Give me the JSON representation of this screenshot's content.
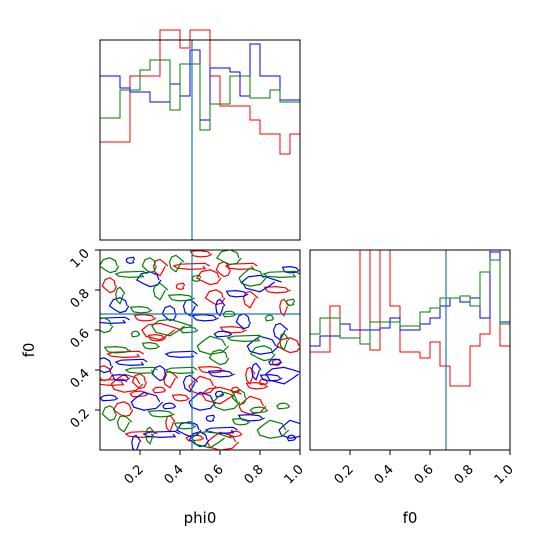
{
  "figure": {
    "type": "corner-plot",
    "axis_labels": {
      "x_left": "phi0",
      "x_right": "f0",
      "y_left": "f0"
    },
    "colors": {
      "red": "#ff0000",
      "blue": "#0000ff",
      "green": "#008000",
      "truth": "#1f77b4"
    }
  },
  "chart_data": [
    {
      "panel": "phi0-marginal",
      "type": "area",
      "xlim": [
        0,
        1
      ],
      "truth": 0.46,
      "bin_edges": [
        0.0,
        0.05,
        0.1,
        0.15,
        0.2,
        0.25,
        0.3,
        0.35,
        0.4,
        0.45,
        0.5,
        0.55,
        0.6,
        0.65,
        0.7,
        0.75,
        0.8,
        0.85,
        0.9,
        0.95,
        1.0
      ],
      "series": [
        {
          "color": "#ff0000",
          "values": [
            0.49,
            0.49,
            0.49,
            0.82,
            0.82,
            0.82,
            1.05,
            1.05,
            0.96,
            1.05,
            1.05,
            0.82,
            0.67,
            0.67,
            0.67,
            0.6,
            0.53,
            0.53,
            0.43,
            0.53
          ]
        },
        {
          "color": "#0000ff",
          "values": [
            0.82,
            0.82,
            0.76,
            0.74,
            0.74,
            0.69,
            0.69,
            0.78,
            0.72,
            0.95,
            0.6,
            0.86,
            0.86,
            0.84,
            0.72,
            0.98,
            0.82,
            0.82,
            0.7,
            0.7
          ]
        },
        {
          "color": "#008000",
          "values": [
            0.61,
            0.61,
            0.75,
            0.75,
            0.85,
            0.9,
            0.9,
            0.65,
            0.88,
            0.88,
            0.55,
            0.68,
            0.68,
            0.82,
            0.82,
            0.71,
            0.71,
            0.75,
            0.69,
            0.69
          ]
        }
      ]
    },
    {
      "panel": "phi0-f0-contour",
      "type": "scatter",
      "xlim": [
        0,
        1
      ],
      "ylim": [
        0,
        1
      ],
      "truth": [
        0.46,
        0.68
      ],
      "xlabel": "phi0",
      "ylabel": "f0",
      "xticks": [
        "0.2",
        "0.4",
        "0.6",
        "0.8",
        "1.0"
      ],
      "yticks": [
        "0.2",
        "0.4",
        "0.6",
        "0.8",
        "1.0"
      ],
      "series": [
        {
          "color": "#ff0000",
          "points": [
            [
              0.02,
              0.38
            ],
            [
              0.05,
              0.34
            ],
            [
              0.2,
              0.34
            ],
            [
              0.35,
              0.36
            ],
            [
              0.55,
              0.4
            ],
            [
              0.75,
              0.38
            ],
            [
              0.78,
              0.32
            ],
            [
              0.6,
              0.28
            ],
            [
              0.4,
              0.26
            ],
            [
              0.2,
              0.28
            ],
            [
              0.12,
              0.33
            ],
            [
              0.3,
              0.3
            ],
            [
              0.5,
              0.32
            ],
            [
              0.68,
              0.3
            ],
            [
              0.4,
              0.82
            ],
            [
              0.55,
              0.86
            ],
            [
              0.45,
              0.92
            ],
            [
              0.58,
              0.76
            ],
            [
              0.7,
              0.92
            ],
            [
              0.62,
              0.9
            ],
            [
              0.75,
              0.76
            ],
            [
              0.88,
              0.8
            ],
            [
              0.92,
              0.72
            ],
            [
              0.22,
              0.66
            ],
            [
              0.3,
              0.6
            ],
            [
              0.28,
              0.56
            ],
            [
              0.48,
              0.06
            ],
            [
              0.6,
              0.04
            ],
            [
              0.68,
              0.08
            ],
            [
              0.75,
              0.22
            ],
            [
              0.82,
              0.34
            ],
            [
              0.88,
              0.44
            ],
            [
              0.95,
              0.52
            ],
            [
              0.12,
              0.48
            ],
            [
              0.12,
              0.2
            ],
            [
              0.2,
              0.08
            ],
            [
              0.05,
              0.82
            ],
            [
              0.3,
              0.92
            ],
            [
              0.66,
              0.6
            ],
            [
              0.35,
              0.14
            ],
            [
              0.5,
              0.98
            ]
          ]
        },
        {
          "color": "#0000ff",
          "points": [
            [
              0.02,
              0.42
            ],
            [
              0.15,
              0.44
            ],
            [
              0.3,
              0.38
            ],
            [
              0.45,
              0.34
            ],
            [
              0.6,
              0.38
            ],
            [
              0.78,
              0.4
            ],
            [
              0.85,
              0.36
            ],
            [
              0.92,
              0.38
            ],
            [
              0.1,
              0.36
            ],
            [
              0.05,
              0.26
            ],
            [
              0.22,
              0.24
            ],
            [
              0.35,
              0.22
            ],
            [
              0.5,
              0.24
            ],
            [
              0.6,
              0.28
            ],
            [
              0.55,
              0.16
            ],
            [
              0.45,
              0.1
            ],
            [
              0.3,
              0.08
            ],
            [
              0.5,
              0.05
            ],
            [
              0.6,
              0.1
            ],
            [
              0.35,
              0.68
            ],
            [
              0.45,
              0.72
            ],
            [
              0.52,
              0.66
            ],
            [
              0.6,
              0.72
            ],
            [
              0.68,
              0.78
            ],
            [
              0.8,
              0.84
            ],
            [
              0.95,
              0.9
            ],
            [
              0.62,
              0.58
            ],
            [
              0.8,
              0.52
            ],
            [
              0.88,
              0.44
            ],
            [
              0.95,
              0.1
            ],
            [
              0.96,
              0.06
            ],
            [
              0.15,
              0.95
            ],
            [
              0.25,
              0.85
            ],
            [
              0.05,
              0.65
            ],
            [
              0.1,
              0.72
            ],
            [
              0.4,
              0.48
            ],
            [
              0.72,
              0.64
            ],
            [
              0.9,
              0.6
            ],
            [
              0.75,
              0.16
            ],
            [
              0.18,
              0.04
            ]
          ]
        },
        {
          "color": "#008000",
          "points": [
            [
              0.05,
              0.92
            ],
            [
              0.15,
              0.88
            ],
            [
              0.25,
              0.92
            ],
            [
              0.3,
              0.8
            ],
            [
              0.4,
              0.76
            ],
            [
              0.1,
              0.78
            ],
            [
              0.2,
              0.7
            ],
            [
              0.35,
              0.62
            ],
            [
              0.25,
              0.52
            ],
            [
              0.45,
              0.6
            ],
            [
              0.55,
              0.52
            ],
            [
              0.65,
              0.68
            ],
            [
              0.75,
              0.86
            ],
            [
              0.85,
              0.66
            ],
            [
              0.95,
              0.74
            ],
            [
              0.65,
              0.96
            ],
            [
              0.72,
              0.56
            ],
            [
              0.6,
              0.46
            ],
            [
              0.2,
              0.4
            ],
            [
              0.05,
              0.18
            ],
            [
              0.12,
              0.14
            ],
            [
              0.3,
              0.18
            ],
            [
              0.25,
              0.08
            ],
            [
              0.42,
              0.12
            ],
            [
              0.55,
              0.06
            ],
            [
              0.7,
              0.14
            ],
            [
              0.8,
              0.2
            ],
            [
              0.85,
              0.1
            ],
            [
              0.92,
              0.22
            ],
            [
              0.62,
              0.24
            ],
            [
              0.18,
              0.58
            ],
            [
              0.48,
              0.86
            ],
            [
              0.82,
              0.48
            ],
            [
              0.9,
              0.88
            ],
            [
              0.02,
              0.62
            ],
            [
              0.4,
              0.4
            ],
            [
              0.7,
              0.26
            ],
            [
              0.38,
              0.94
            ],
            [
              0.08,
              0.5
            ],
            [
              0.92,
              0.55
            ]
          ]
        }
      ]
    },
    {
      "panel": "f0-marginal",
      "type": "area",
      "xlim": [
        0,
        1
      ],
      "truth": 0.68,
      "xlabel": "f0",
      "xticks": [
        "0.2",
        "0.4",
        "0.6",
        "0.8",
        "1.0"
      ],
      "bin_edges": [
        0.0,
        0.05,
        0.1,
        0.15,
        0.2,
        0.25,
        0.3,
        0.35,
        0.4,
        0.45,
        0.5,
        0.55,
        0.6,
        0.65,
        0.7,
        0.75,
        0.8,
        0.85,
        0.9,
        0.95,
        1.0
      ],
      "series": [
        {
          "color": "#ff0000",
          "values": [
            0.49,
            0.49,
            0.72,
            0.56,
            0.56,
            1.0,
            0.5,
            1.0,
            0.72,
            0.49,
            0.49,
            0.46,
            0.54,
            0.42,
            0.32,
            0.32,
            0.52,
            0.58,
            1.0,
            0.52
          ]
        },
        {
          "color": "#0000ff",
          "values": [
            0.52,
            0.57,
            0.57,
            0.63,
            0.6,
            0.6,
            0.6,
            0.61,
            0.66,
            0.6,
            0.6,
            0.63,
            0.66,
            0.72,
            0.76,
            0.74,
            0.76,
            0.66,
            0.99,
            0.64
          ]
        },
        {
          "color": "#008000",
          "values": [
            0.58,
            0.66,
            0.66,
            0.56,
            0.56,
            0.53,
            0.64,
            0.64,
            0.64,
            0.62,
            0.62,
            0.69,
            0.71,
            0.76,
            0.76,
            0.77,
            0.72,
            0.89,
            0.95,
            0.63
          ]
        }
      ]
    }
  ]
}
